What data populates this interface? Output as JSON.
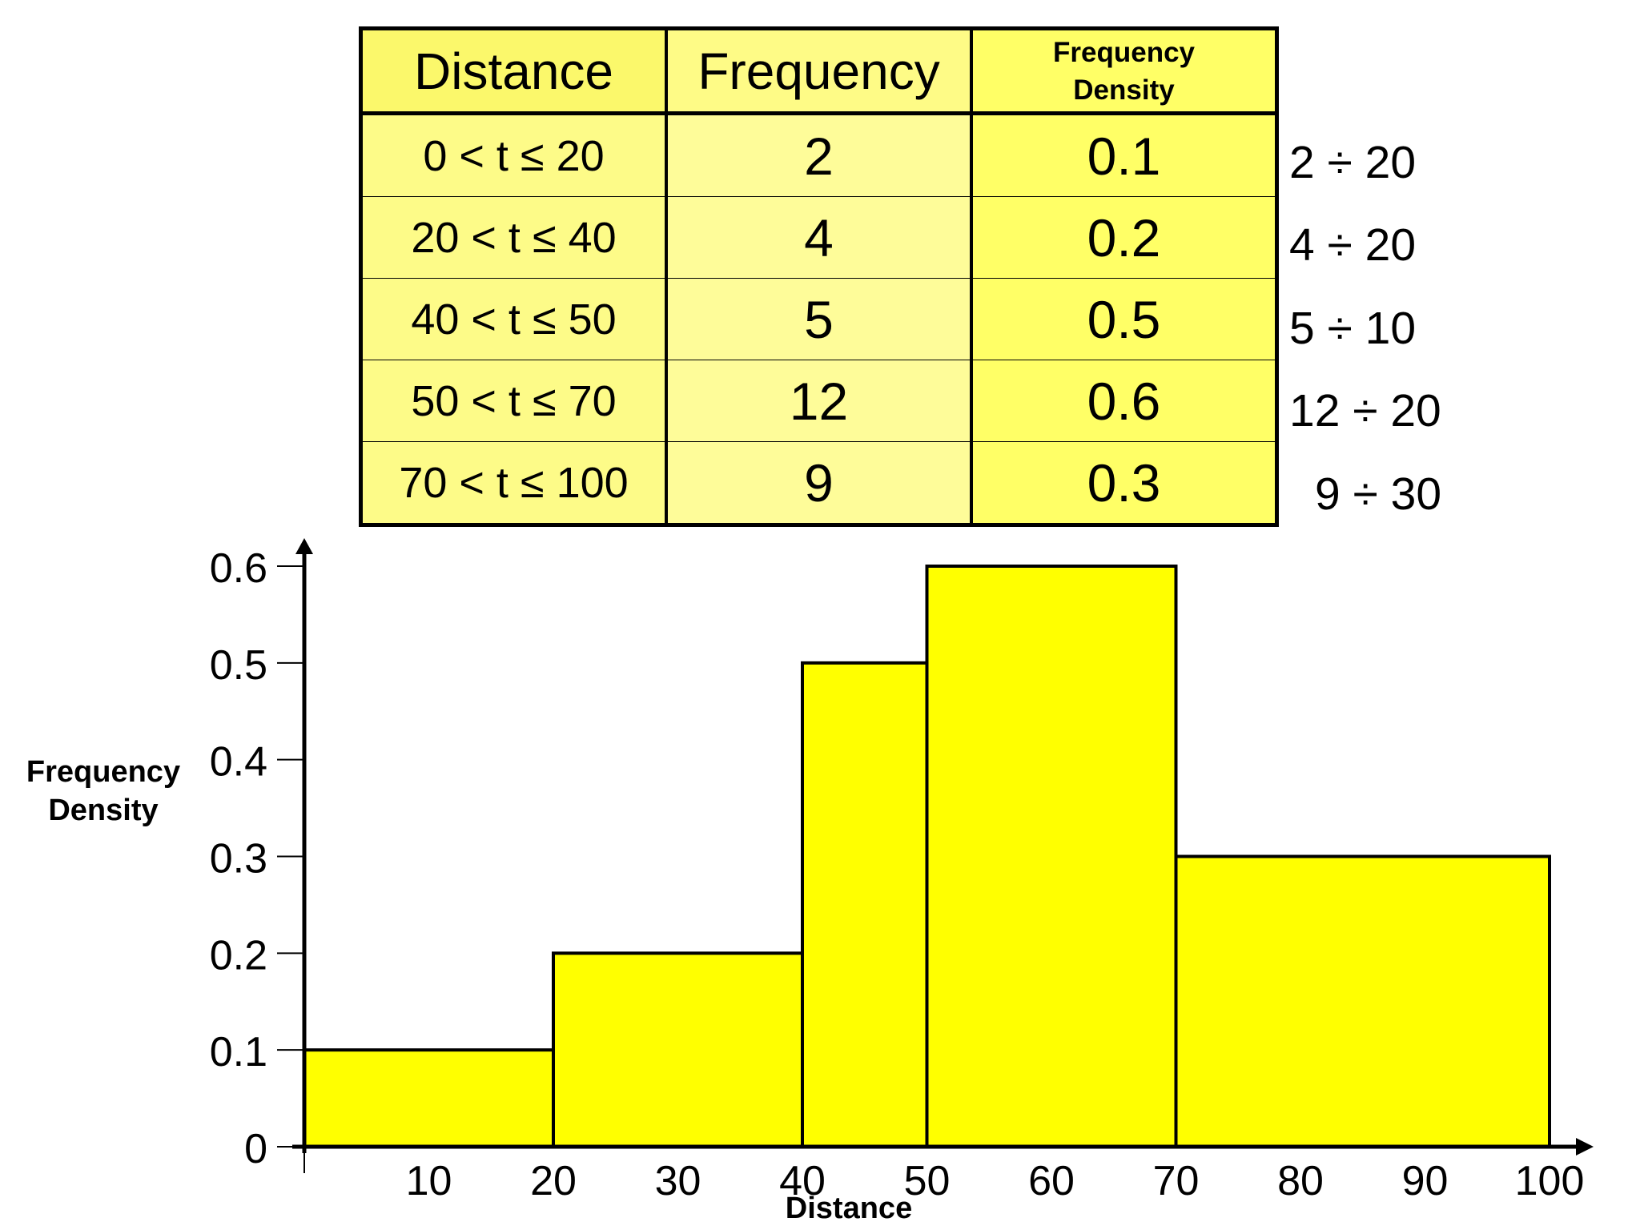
{
  "table": {
    "headers": [
      "Distance",
      "Frequency",
      "Frequency\nDensity"
    ],
    "header_density_line1": "Frequency",
    "header_density_line2": "Density",
    "rows": [
      {
        "distance": "0 < t ≤ 20",
        "frequency": "2",
        "density": "0.1",
        "calc": "2 ÷ 20"
      },
      {
        "distance": "20 < t ≤ 40",
        "frequency": "4",
        "density": "0.2",
        "calc": "4 ÷ 20"
      },
      {
        "distance": "40 < t ≤ 50",
        "frequency": "5",
        "density": "0.5",
        "calc": "5 ÷ 10"
      },
      {
        "distance": "50 < t ≤ 70",
        "frequency": "12",
        "density": "0.6",
        "calc": "12 ÷ 20"
      },
      {
        "distance": "70 < t ≤ 100",
        "frequency": "9",
        "density": "0.3",
        "calc": "9 ÷ 30"
      }
    ]
  },
  "colors": {
    "bar_fill": "#ffff00",
    "table_fill": "#ffff66",
    "outline": "#000000"
  },
  "chart_data": {
    "type": "bar",
    "subtype": "histogram",
    "bins": [
      {
        "from": 0,
        "to": 20,
        "frequency_density": 0.1
      },
      {
        "from": 20,
        "to": 40,
        "frequency_density": 0.2
      },
      {
        "from": 40,
        "to": 50,
        "frequency_density": 0.5
      },
      {
        "from": 50,
        "to": 70,
        "frequency_density": 0.6
      },
      {
        "from": 70,
        "to": 100,
        "frequency_density": 0.3
      }
    ],
    "xlabel": "Distance",
    "ylabel_line1": "Frequency",
    "ylabel_line2": "Density",
    "xlim": [
      0,
      100
    ],
    "ylim": [
      0,
      0.6
    ],
    "x_ticks": [
      10,
      20,
      30,
      40,
      50,
      60,
      70,
      80,
      90,
      100
    ],
    "y_ticks": [
      "0",
      "0.1",
      "0.2",
      "0.3",
      "0.4",
      "0.5",
      "0.6"
    ],
    "grid": false
  }
}
